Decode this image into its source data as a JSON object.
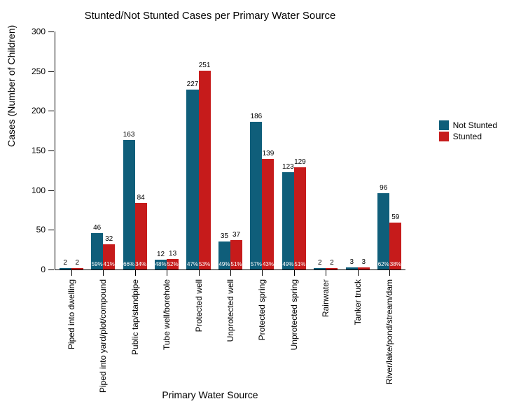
{
  "chart": {
    "type": "bar_grouped",
    "title": "Stunted/Not Stunted Cases per Primary Water Source",
    "y_axis_label": "Cases (Number of Children)",
    "x_axis_label": "Primary Water Source",
    "title_fontsize": 15,
    "axis_label_fontsize": 14,
    "tick_fontsize": 12,
    "value_label_fontsize": 10,
    "pct_label_fontsize": 8,
    "background_color": "#ffffff",
    "axis_color": "#000000",
    "ylim": [
      0,
      300
    ],
    "ytick_step": 50,
    "series": [
      {
        "name": "Not Stunted",
        "color": "#0f5e7a"
      },
      {
        "name": "Stunted",
        "color": "#c61b1b"
      }
    ],
    "legend_position": "right",
    "bar_group_gap_ratio": 0.25,
    "categories": [
      {
        "label": "Piped into dwelling",
        "not_stunted": 2,
        "stunted": 2,
        "pct_ns": "",
        "pct_s": ""
      },
      {
        "label": "Piped into yard/plot/compound",
        "not_stunted": 46,
        "stunted": 32,
        "pct_ns": "59%",
        "pct_s": "41%"
      },
      {
        "label": "Public tap/standpipe",
        "not_stunted": 163,
        "stunted": 84,
        "pct_ns": "66%",
        "pct_s": "34%"
      },
      {
        "label": "Tube well/borehole",
        "not_stunted": 12,
        "stunted": 13,
        "pct_ns": "48%",
        "pct_s": "52%"
      },
      {
        "label": "Protected well",
        "not_stunted": 227,
        "stunted": 251,
        "pct_ns": "47%",
        "pct_s": "53%"
      },
      {
        "label": "Unprotected well",
        "not_stunted": 35,
        "stunted": 37,
        "pct_ns": "49%",
        "pct_s": "51%"
      },
      {
        "label": "Protected spring",
        "not_stunted": 186,
        "stunted": 139,
        "pct_ns": "57%",
        "pct_s": "43%"
      },
      {
        "label": "Unprotected spring",
        "not_stunted": 123,
        "stunted": 129,
        "pct_ns": "49%",
        "pct_s": "51%"
      },
      {
        "label": "Rainwater",
        "not_stunted": 2,
        "stunted": 2,
        "pct_ns": "",
        "pct_s": ""
      },
      {
        "label": "Tanker truck",
        "not_stunted": 3,
        "stunted": 3,
        "pct_ns": "",
        "pct_s": ""
      },
      {
        "label": "River/lake/pond/stream/dam",
        "not_stunted": 96,
        "stunted": 59,
        "pct_ns": "62%",
        "pct_s": "38%"
      }
    ]
  }
}
